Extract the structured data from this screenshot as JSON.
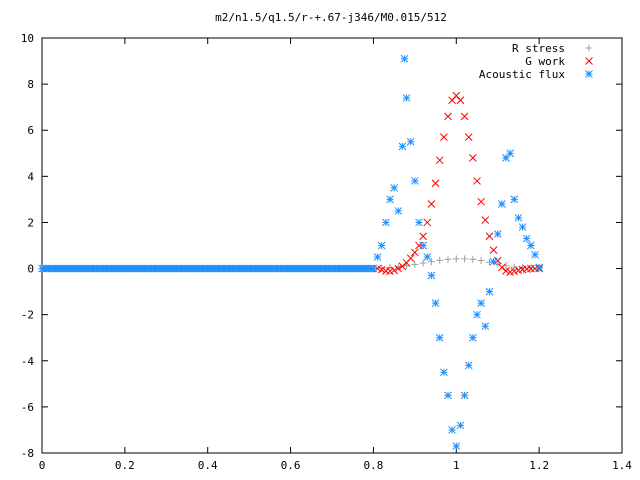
{
  "chart_data": {
    "type": "scatter",
    "title": "m2/n1.5/q1.5/r-+.67-j346/M0.015/512",
    "xlabel": "",
    "ylabel": "",
    "xlim": [
      0,
      1.4
    ],
    "ylim": [
      -8,
      10
    ],
    "x_ticks": [
      "0",
      "0.2",
      "0.4",
      "0.6",
      "0.8",
      "1",
      "1.2",
      "1.4"
    ],
    "y_ticks": [
      "-8",
      "-6",
      "-4",
      "-2",
      "0",
      "2",
      "4",
      "6",
      "8",
      "10"
    ],
    "grid": false,
    "legend_position": "top-right",
    "series": [
      {
        "name": "R stress",
        "marker": "+",
        "color": "#a0a0a0",
        "points": [
          [
            0.82,
            0.02
          ],
          [
            0.84,
            0.05
          ],
          [
            0.86,
            0.08
          ],
          [
            0.88,
            0.12
          ],
          [
            0.9,
            0.18
          ],
          [
            0.92,
            0.24
          ],
          [
            0.94,
            0.3
          ],
          [
            0.96,
            0.36
          ],
          [
            0.98,
            0.4
          ],
          [
            1.0,
            0.42
          ],
          [
            1.02,
            0.42
          ],
          [
            1.04,
            0.4
          ],
          [
            1.06,
            0.35
          ],
          [
            1.08,
            0.28
          ],
          [
            1.1,
            0.2
          ],
          [
            1.12,
            0.12
          ],
          [
            1.14,
            0.07
          ],
          [
            1.16,
            0.04
          ],
          [
            1.18,
            0.02
          ],
          [
            1.2,
            0.01
          ]
        ]
      },
      {
        "name": "G work",
        "marker": "x",
        "color": "#ff0000",
        "points": [
          [
            0.81,
            0.0
          ],
          [
            0.82,
            -0.05
          ],
          [
            0.83,
            -0.1
          ],
          [
            0.84,
            -0.12
          ],
          [
            0.85,
            -0.08
          ],
          [
            0.86,
            0.0
          ],
          [
            0.87,
            0.1
          ],
          [
            0.88,
            0.25
          ],
          [
            0.89,
            0.45
          ],
          [
            0.9,
            0.7
          ],
          [
            0.91,
            1.0
          ],
          [
            0.92,
            1.4
          ],
          [
            0.93,
            2.0
          ],
          [
            0.94,
            2.8
          ],
          [
            0.95,
            3.7
          ],
          [
            0.96,
            4.7
          ],
          [
            0.97,
            5.7
          ],
          [
            0.98,
            6.6
          ],
          [
            0.99,
            7.3
          ],
          [
            1.0,
            7.5
          ],
          [
            1.01,
            7.3
          ],
          [
            1.02,
            6.6
          ],
          [
            1.03,
            5.7
          ],
          [
            1.04,
            4.8
          ],
          [
            1.05,
            3.8
          ],
          [
            1.06,
            2.9
          ],
          [
            1.07,
            2.1
          ],
          [
            1.08,
            1.4
          ],
          [
            1.09,
            0.8
          ],
          [
            1.1,
            0.35
          ],
          [
            1.11,
            0.05
          ],
          [
            1.12,
            -0.1
          ],
          [
            1.13,
            -0.15
          ],
          [
            1.14,
            -0.12
          ],
          [
            1.15,
            -0.08
          ],
          [
            1.16,
            -0.04
          ],
          [
            1.17,
            -0.02
          ],
          [
            1.18,
            0.0
          ],
          [
            1.19,
            0.0
          ],
          [
            1.2,
            0.0
          ]
        ]
      },
      {
        "name": "Acoustic flux",
        "marker": "*",
        "color": "#1e90ff",
        "points": [
          [
            0.8,
            0.0
          ],
          [
            0.81,
            0.5
          ],
          [
            0.82,
            1.0
          ],
          [
            0.83,
            2.0
          ],
          [
            0.84,
            3.0
          ],
          [
            0.85,
            3.5
          ],
          [
            0.86,
            2.5
          ],
          [
            0.87,
            5.3
          ],
          [
            0.875,
            9.1
          ],
          [
            0.88,
            7.4
          ],
          [
            0.89,
            5.5
          ],
          [
            0.9,
            3.8
          ],
          [
            0.91,
            2.0
          ],
          [
            0.92,
            1.0
          ],
          [
            0.93,
            0.5
          ],
          [
            0.94,
            -0.3
          ],
          [
            0.95,
            -1.5
          ],
          [
            0.96,
            -3.0
          ],
          [
            0.97,
            -4.5
          ],
          [
            0.98,
            -5.5
          ],
          [
            0.99,
            -7.0
          ],
          [
            1.0,
            -7.7
          ],
          [
            1.01,
            -6.8
          ],
          [
            1.02,
            -5.5
          ],
          [
            1.03,
            -4.2
          ],
          [
            1.04,
            -3.0
          ],
          [
            1.05,
            -2.0
          ],
          [
            1.06,
            -1.5
          ],
          [
            1.07,
            -2.5
          ],
          [
            1.08,
            -1.0
          ],
          [
            1.09,
            0.3
          ],
          [
            1.1,
            1.5
          ],
          [
            1.11,
            2.8
          ],
          [
            1.12,
            4.8
          ],
          [
            1.13,
            5.0
          ],
          [
            1.14,
            3.0
          ],
          [
            1.15,
            2.2
          ],
          [
            1.16,
            1.8
          ],
          [
            1.17,
            1.3
          ],
          [
            1.18,
            1.0
          ],
          [
            1.19,
            0.6
          ],
          [
            1.2,
            0.05
          ]
        ]
      }
    ]
  }
}
